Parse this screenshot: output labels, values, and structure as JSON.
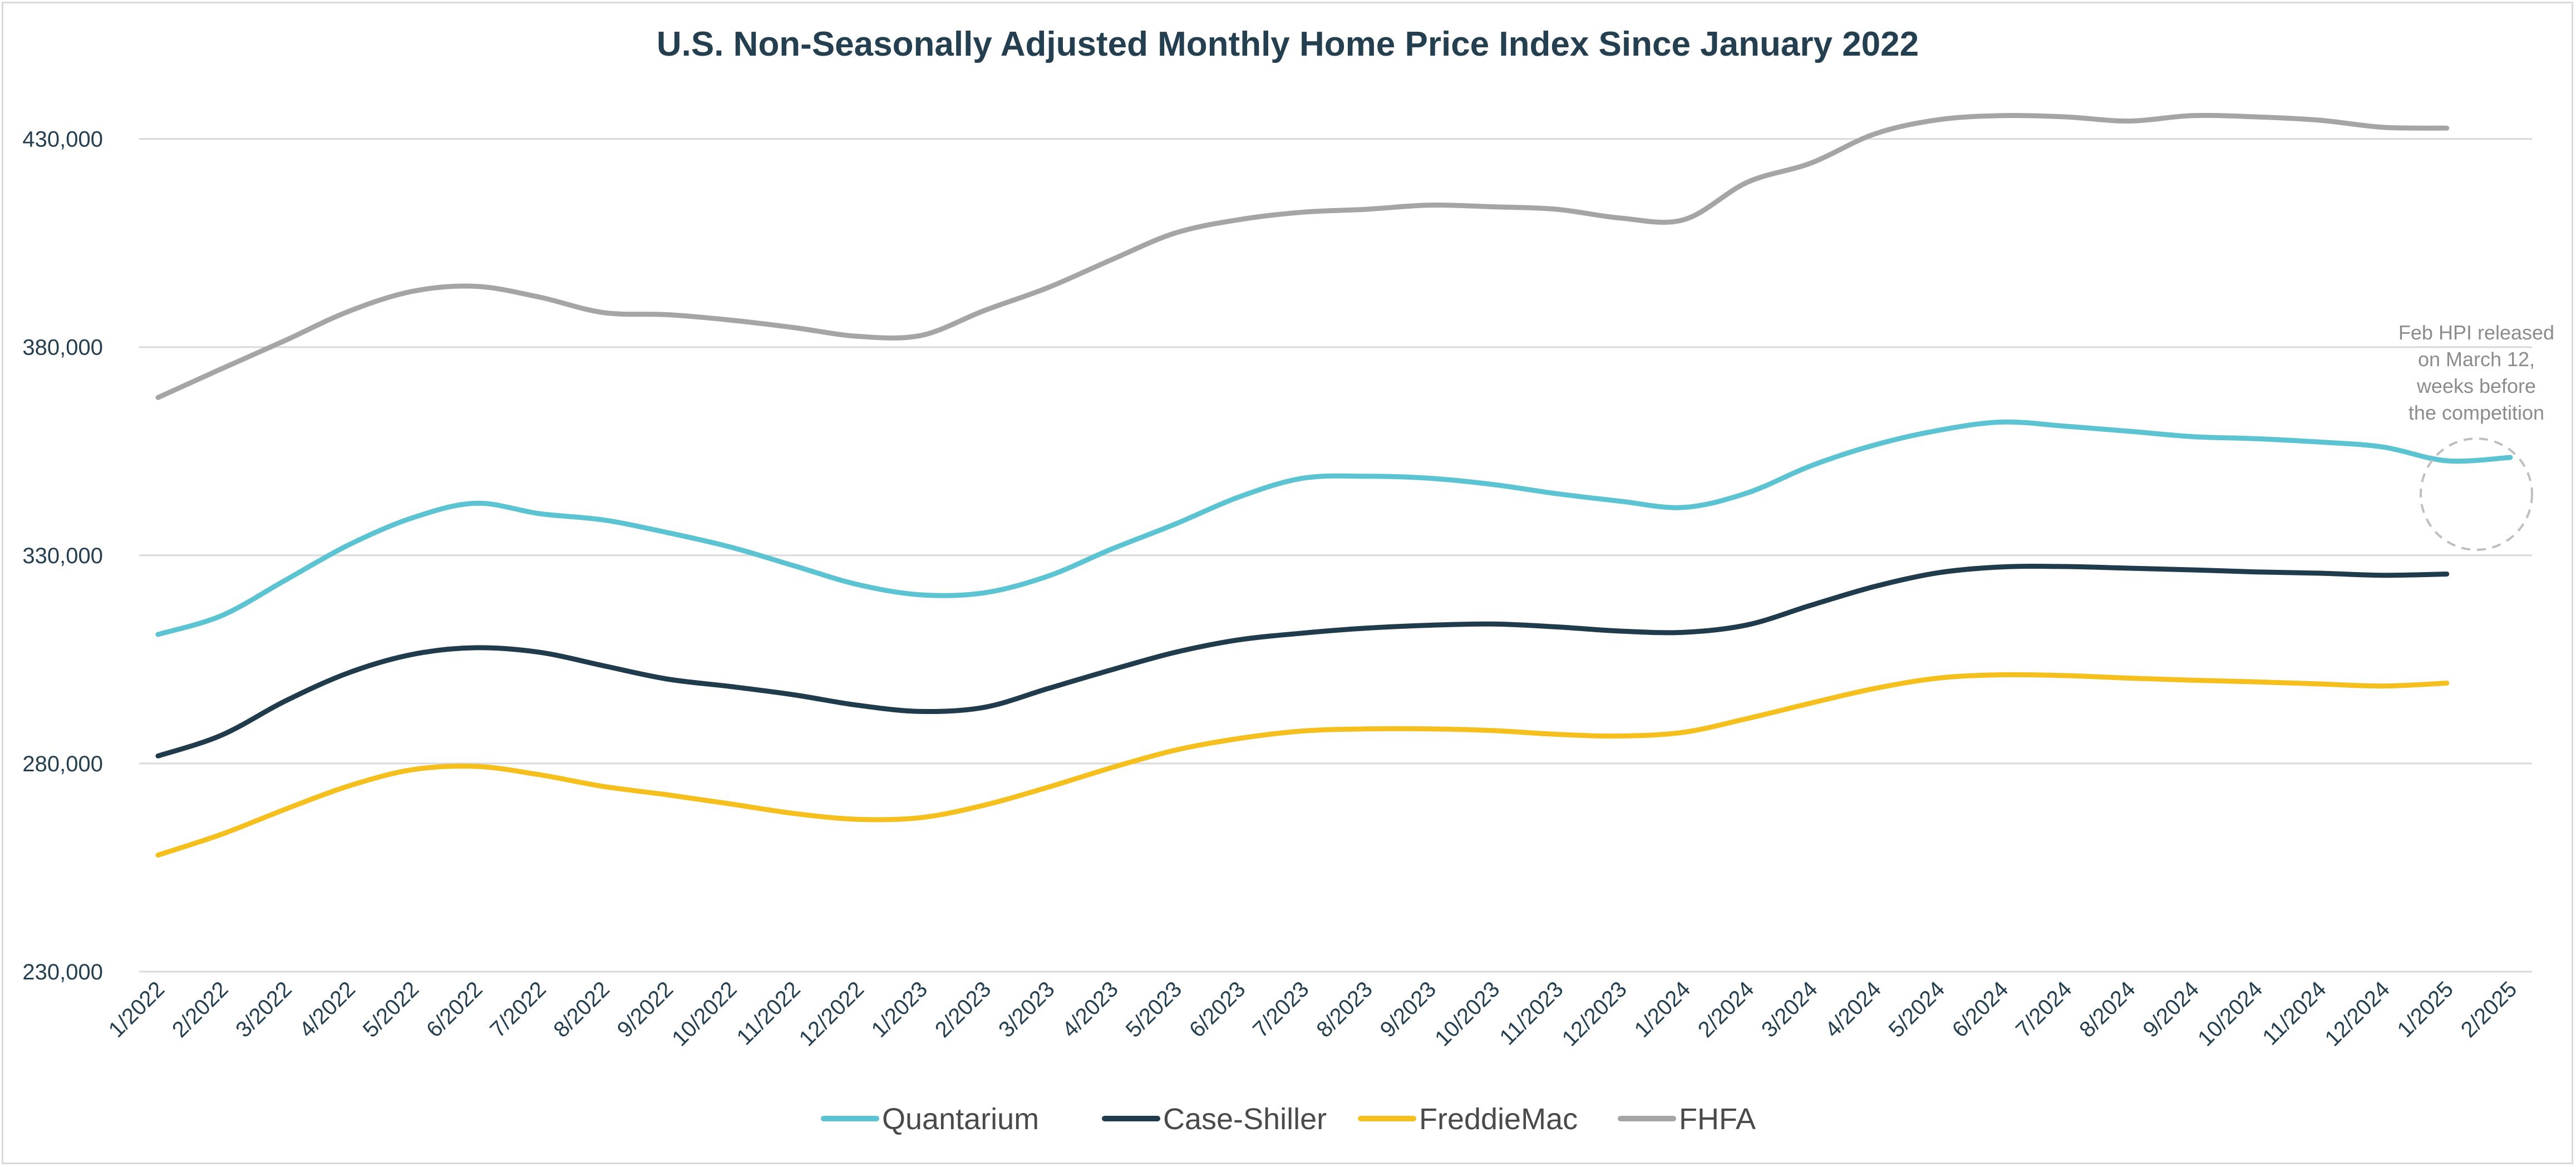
{
  "chart_data": {
    "type": "line",
    "title": "U.S. Non-Seasonally Adjusted Monthly Home Price Index Since January 2022",
    "xlabel": "",
    "ylabel": "",
    "ylim": [
      230000,
      450000
    ],
    "y_ticks": [
      230000,
      280000,
      330000,
      380000,
      430000
    ],
    "y_tick_labels": [
      "230,000",
      "280,000",
      "330,000",
      "380,000",
      "430,000"
    ],
    "grid": true,
    "legend_position": "bottom",
    "categories": [
      "1/2022",
      "2/2022",
      "3/2022",
      "4/2022",
      "5/2022",
      "6/2022",
      "7/2022",
      "8/2022",
      "9/2022",
      "10/2022",
      "11/2022",
      "12/2022",
      "1/2023",
      "2/2023",
      "3/2023",
      "4/2023",
      "5/2023",
      "6/2023",
      "7/2023",
      "8/2023",
      "9/2023",
      "10/2023",
      "11/2023",
      "12/2023",
      "1/2024",
      "2/2024",
      "3/2024",
      "4/2024",
      "5/2024",
      "6/2024",
      "7/2024",
      "8/2024",
      "9/2024",
      "10/2024",
      "11/2024",
      "12/2024",
      "1/2025",
      "2/2025"
    ],
    "series": [
      {
        "name": "Quantarium",
        "color": "#5bc3d1",
        "values": [
          311000,
          315500,
          324000,
          332500,
          339000,
          342500,
          340000,
          338500,
          335500,
          332000,
          327500,
          323000,
          320500,
          321000,
          325000,
          331500,
          337500,
          344000,
          348500,
          349000,
          348500,
          347000,
          344800,
          343000,
          341500,
          345000,
          351500,
          356500,
          360000,
          362000,
          361000,
          359800,
          358500,
          358000,
          357200,
          356000,
          352700,
          353500
        ]
      },
      {
        "name": "Case-Shiller",
        "color": "#203c4c",
        "values": [
          281800,
          286800,
          295000,
          301800,
          306200,
          307800,
          306700,
          303500,
          300300,
          298500,
          296500,
          294000,
          292500,
          293500,
          298000,
          302500,
          306700,
          309700,
          311300,
          312500,
          313200,
          313500,
          312800,
          311800,
          311500,
          313300,
          318000,
          322500,
          325800,
          327200,
          327300,
          326900,
          326500,
          326000,
          325700,
          325200,
          325500,
          null
        ]
      },
      {
        "name": "FreddieMac",
        "color": "#f5bf1e",
        "values": [
          258000,
          263000,
          269000,
          274600,
          278500,
          279300,
          277300,
          274500,
          272500,
          270300,
          268000,
          266600,
          267000,
          270000,
          274300,
          279000,
          283200,
          286000,
          287800,
          288300,
          288300,
          287900,
          287000,
          286600,
          287500,
          290800,
          294500,
          298000,
          300500,
          301300,
          301100,
          300500,
          300000,
          299600,
          299100,
          298600,
          299300,
          null
        ]
      },
      {
        "name": "FHFA",
        "color": "#a5a5a5",
        "values": [
          367900,
          374800,
          381600,
          388600,
          393400,
          394600,
          392000,
          388300,
          387800,
          386500,
          384700,
          382600,
          382800,
          388800,
          394300,
          401000,
          407400,
          410600,
          412400,
          413100,
          414100,
          413700,
          413100,
          411000,
          410600,
          419600,
          424200,
          431200,
          434600,
          435600,
          435300,
          434300,
          435600,
          435300,
          434500,
          432800,
          432600,
          null
        ]
      }
    ],
    "annotation": {
      "lines": [
        "Feb HPI released",
        "on March 12,",
        "weeks before",
        "the competition"
      ]
    }
  }
}
